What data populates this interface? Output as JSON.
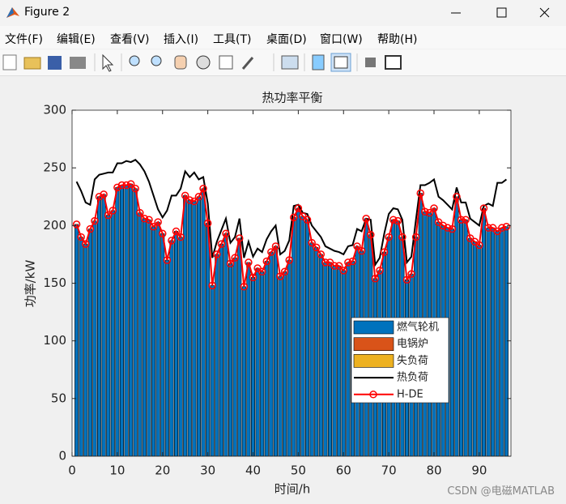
{
  "window": {
    "title": "Figure 2",
    "menu": [
      "文件(F)",
      "编辑(E)",
      "查看(V)",
      "插入(I)",
      "工具(T)",
      "桌面(D)",
      "窗口(W)",
      "帮助(H)"
    ],
    "watermark": "CSDN @电磁MATLAB"
  },
  "chart_data": {
    "type": "bar",
    "title": "热功率平衡",
    "x_label": "时间/h",
    "y_label": "功率/kW",
    "x": [
      1,
      2,
      3,
      4,
      5,
      6,
      7,
      8,
      9,
      10,
      11,
      12,
      13,
      14,
      15,
      16,
      17,
      18,
      19,
      20,
      21,
      22,
      23,
      24,
      25,
      26,
      27,
      28,
      29,
      30,
      31,
      32,
      33,
      34,
      35,
      36,
      37,
      38,
      39,
      40,
      41,
      42,
      43,
      44,
      45,
      46,
      47,
      48,
      49,
      50,
      51,
      52,
      53,
      54,
      55,
      56,
      57,
      58,
      59,
      60,
      61,
      62,
      63,
      64,
      65,
      66,
      67,
      68,
      69,
      70,
      71,
      72,
      73,
      74,
      75,
      76,
      77,
      78,
      79,
      80,
      81,
      82,
      83,
      84,
      85,
      86,
      87,
      88,
      89,
      90,
      91,
      92,
      93,
      94,
      95,
      96
    ],
    "xlim": [
      0,
      97
    ],
    "xticks": [
      0,
      10,
      20,
      30,
      40,
      50,
      60,
      70,
      80,
      90
    ],
    "ylim": [
      0,
      300
    ],
    "yticks": [
      0,
      50,
      100,
      150,
      200,
      250,
      300
    ],
    "grid": false,
    "legend": "southeast",
    "series": [
      {
        "name": "燃气轮机",
        "type": "bar",
        "color": "#0072bd",
        "values": [
          201,
          190,
          184,
          197,
          204,
          225,
          227,
          209,
          213,
          233,
          235,
          235,
          236,
          232,
          211,
          206,
          205,
          199,
          203,
          193,
          170,
          187,
          195,
          190,
          226,
          222,
          221,
          225,
          232,
          202,
          148,
          175,
          184,
          193,
          167,
          172,
          189,
          147,
          168,
          155,
          163,
          160,
          169,
          177,
          182,
          156,
          160,
          170,
          207,
          215,
          208,
          205,
          185,
          181,
          175,
          168,
          168,
          165,
          165,
          161,
          168,
          169,
          182,
          178,
          206,
          192,
          154,
          161,
          177,
          190,
          205,
          204,
          190,
          153,
          158,
          190,
          228,
          212,
          211,
          215,
          203,
          200,
          198,
          197,
          225,
          205,
          205,
          189,
          186,
          183,
          215,
          198,
          198,
          195,
          198,
          199
        ]
      },
      {
        "name": "电锅炉",
        "type": "bar",
        "color": "#d95319",
        "values": [
          0,
          0,
          0,
          0,
          0,
          0,
          0,
          0,
          0,
          0,
          0,
          0,
          0,
          0,
          0,
          0,
          0,
          0,
          0,
          0,
          0,
          0,
          0,
          0,
          0,
          0,
          0,
          0,
          0,
          0,
          0,
          0,
          0,
          0,
          0,
          0,
          0,
          0,
          0,
          0,
          0,
          0,
          0,
          0,
          0,
          0,
          0,
          0,
          0,
          0,
          0,
          0,
          0,
          0,
          0,
          0,
          0,
          0,
          0,
          0,
          0,
          0,
          0,
          0,
          0,
          0,
          0,
          0,
          0,
          0,
          0,
          0,
          0,
          0,
          0,
          0,
          0,
          0,
          0,
          0,
          0,
          0,
          0,
          0,
          0,
          0,
          0,
          0,
          0,
          0,
          0,
          0,
          0,
          0,
          0,
          0
        ]
      },
      {
        "name": "失负荷",
        "type": "bar",
        "color": "#edb120",
        "values": [
          0,
          0,
          0,
          0,
          0,
          0,
          0,
          0,
          0,
          0,
          0,
          0,
          0,
          0,
          0,
          0,
          0,
          0,
          0,
          0,
          0,
          0,
          0,
          0,
          0,
          0,
          0,
          0,
          0,
          0,
          0,
          0,
          0,
          0,
          0,
          0,
          0,
          0,
          0,
          0,
          0,
          0,
          0,
          0,
          0,
          0,
          0,
          0,
          0,
          0,
          0,
          0,
          0,
          0,
          0,
          0,
          0,
          0,
          0,
          0,
          0,
          0,
          0,
          0,
          0,
          0,
          0,
          0,
          0,
          0,
          0,
          0,
          0,
          0,
          0,
          0,
          0,
          0,
          0,
          0,
          0,
          0,
          0,
          0,
          0,
          0,
          0,
          0,
          0,
          0,
          0,
          0,
          0,
          0,
          0,
          0
        ]
      },
      {
        "name": "热负荷",
        "type": "line",
        "color": "#000000",
        "values": [
          238,
          230,
          220,
          218,
          240,
          244,
          245,
          246,
          246,
          254,
          254,
          256,
          255,
          257,
          253,
          247,
          238,
          226,
          214,
          207,
          213,
          226,
          226,
          232,
          247,
          242,
          246,
          240,
          242,
          219,
          172,
          186,
          196,
          206,
          185,
          190,
          206,
          172,
          186,
          173,
          180,
          177,
          188,
          195,
          200,
          175,
          178,
          187,
          217,
          218,
          211,
          210,
          200,
          195,
          190,
          182,
          180,
          178,
          177,
          175,
          182,
          183,
          197,
          195,
          206,
          205,
          166,
          172,
          193,
          210,
          215,
          214,
          205,
          168,
          173,
          205,
          235,
          235,
          237,
          240,
          225,
          222,
          218,
          214,
          233,
          220,
          220,
          206,
          203,
          200,
          217,
          219,
          217,
          237,
          237,
          240
        ]
      },
      {
        "name": "H-DE",
        "type": "line",
        "marker": "circle",
        "color": "#ff0000",
        "values": [
          201,
          190,
          184,
          197,
          204,
          225,
          227,
          209,
          213,
          233,
          235,
          235,
          236,
          232,
          211,
          206,
          205,
          199,
          203,
          193,
          170,
          187,
          195,
          190,
          226,
          222,
          221,
          225,
          232,
          202,
          148,
          175,
          184,
          193,
          167,
          172,
          189,
          147,
          168,
          155,
          163,
          160,
          169,
          177,
          182,
          156,
          160,
          170,
          207,
          215,
          208,
          205,
          185,
          181,
          175,
          168,
          168,
          165,
          165,
          161,
          168,
          169,
          182,
          178,
          206,
          192,
          154,
          161,
          177,
          190,
          205,
          204,
          190,
          153,
          158,
          190,
          228,
          212,
          211,
          215,
          203,
          200,
          198,
          197,
          225,
          205,
          205,
          189,
          186,
          183,
          215,
          198,
          198,
          195,
          198,
          199
        ]
      }
    ]
  }
}
